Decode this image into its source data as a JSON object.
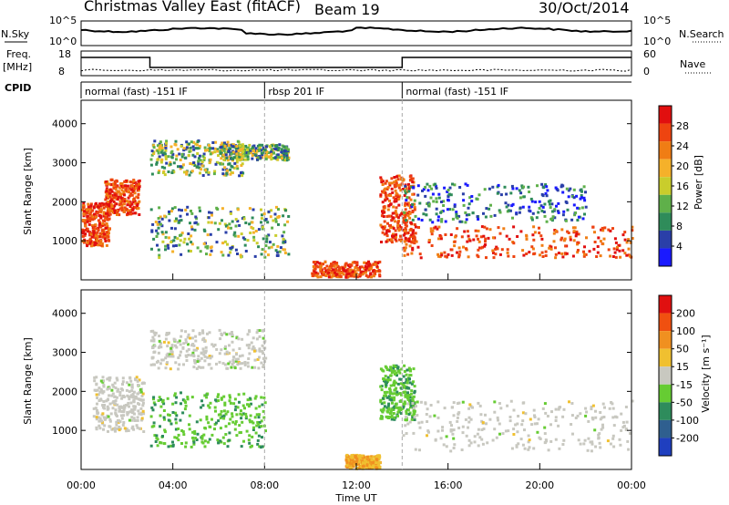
{
  "header": {
    "station_title": "Christmas Valley East (fitACF)",
    "beam": "Beam 19",
    "date": "30/Oct/2014"
  },
  "top_panels": {
    "nsky_label": "N.Sky",
    "nsearch_label": "N.Search",
    "nsky_ticks": [
      "10^5",
      "10^0"
    ],
    "nsearch_ticks": [
      "10^5",
      "10^0"
    ],
    "freq_label_line1": "Freq.",
    "freq_label_line2": "[MHz]",
    "freq_ticks": [
      "18",
      "8"
    ],
    "nave_label": "Nave",
    "nave_ticks": [
      "60",
      "0"
    ],
    "cpid_label": "CPID",
    "cpid_segments": [
      {
        "label": "normal (fast) -151 IF",
        "start_hour": 0.0,
        "end_hour": 8.0
      },
      {
        "label": "rbsp 201 IF",
        "start_hour": 8.0,
        "end_hour": 14.0
      },
      {
        "label": "normal (fast) -151 IF",
        "start_hour": 14.0,
        "end_hour": 24.0
      }
    ],
    "freq_steps": [
      {
        "start_hour": 0.0,
        "end_hour": 3.0,
        "level": "high"
      },
      {
        "start_hour": 3.0,
        "end_hour": 14.0,
        "level": "low"
      },
      {
        "start_hour": 14.0,
        "end_hour": 24.0,
        "level": "high"
      }
    ]
  },
  "chart_data": [
    {
      "type": "heatmap",
      "panel": "power",
      "ylabel": "Slant Range [km]",
      "ylim": [
        0,
        4600
      ],
      "yticks": [
        1000,
        2000,
        3000,
        4000
      ],
      "xlim": [
        "00:00",
        "24:00"
      ],
      "colorbar": {
        "label": "Power [dB]",
        "ticks": [
          "4",
          "8",
          "12",
          "16",
          "20",
          "24",
          "28"
        ],
        "colors": [
          "#1a1aff",
          "#2a3fa8",
          "#2f8c5a",
          "#5fb04a",
          "#c9cd2c",
          "#f5b12a",
          "#f07d14",
          "#ee4410",
          "#e10f0f"
        ]
      },
      "echo_regions": [
        {
          "hours": [
            0.0,
            1.2
          ],
          "range_km": [
            900,
            2000
          ],
          "value_level": "high"
        },
        {
          "hours": [
            1.0,
            2.5
          ],
          "range_km": [
            1700,
            2600
          ],
          "value_level": "high"
        },
        {
          "hours": [
            3.0,
            7.0
          ],
          "range_km": [
            2700,
            3600
          ],
          "value_level": "medium"
        },
        {
          "hours": [
            6.0,
            9.0
          ],
          "range_km": [
            3100,
            3500
          ],
          "value_level": "medium"
        },
        {
          "hours": [
            3.0,
            9.0
          ],
          "range_km": [
            600,
            1900
          ],
          "value_level": "medium"
        },
        {
          "hours": [
            13.0,
            14.5
          ],
          "range_km": [
            1000,
            2700
          ],
          "value_level": "high"
        },
        {
          "hours": [
            14.0,
            24.0
          ],
          "range_km": [
            600,
            1400
          ],
          "value_level": "high"
        },
        {
          "hours": [
            14.0,
            22.0
          ],
          "range_km": [
            1500,
            2500
          ],
          "value_level": "low"
        },
        {
          "hours": [
            10.0,
            13.0
          ],
          "range_km": [
            100,
            500
          ],
          "value_level": "high"
        }
      ]
    },
    {
      "type": "heatmap",
      "panel": "velocity",
      "ylabel": "Slant Range [km]",
      "ylim": [
        0,
        4600
      ],
      "yticks": [
        1000,
        2000,
        3000,
        4000
      ],
      "xlim": [
        "00:00",
        "24:00"
      ],
      "colorbar": {
        "label": "Velocity [m s⁻¹]",
        "ticks": [
          "200",
          "100",
          "50",
          "15",
          "-15",
          "-50",
          "-100",
          "-200"
        ],
        "colors": [
          "#1f3fbf",
          "#2f5f8f",
          "#2e8c5c",
          "#66cc33",
          "#c8c8c0",
          "#f0c030",
          "#f09020",
          "#f05010",
          "#e01010"
        ]
      },
      "echo_regions": [
        {
          "hours": [
            0.5,
            2.7
          ],
          "range_km": [
            1000,
            2400
          ],
          "value_level": "neutral"
        },
        {
          "hours": [
            3.0,
            8.0
          ],
          "range_km": [
            2600,
            3600
          ],
          "value_level": "neutral"
        },
        {
          "hours": [
            3.0,
            8.0
          ],
          "range_km": [
            600,
            2000
          ],
          "value_level": "positive"
        },
        {
          "hours": [
            13.0,
            14.5
          ],
          "range_km": [
            1300,
            2700
          ],
          "value_level": "positive"
        },
        {
          "hours": [
            14.0,
            24.0
          ],
          "range_km": [
            500,
            1800
          ],
          "value_level": "neutral"
        },
        {
          "hours": [
            11.5,
            13.0
          ],
          "range_km": [
            50,
            400
          ],
          "value_level": "negative"
        }
      ]
    }
  ],
  "x_axis": {
    "ticks": [
      "00:00",
      "04:00",
      "08:00",
      "12:00",
      "16:00",
      "20:00",
      "00:00"
    ],
    "label": "Time UT"
  }
}
